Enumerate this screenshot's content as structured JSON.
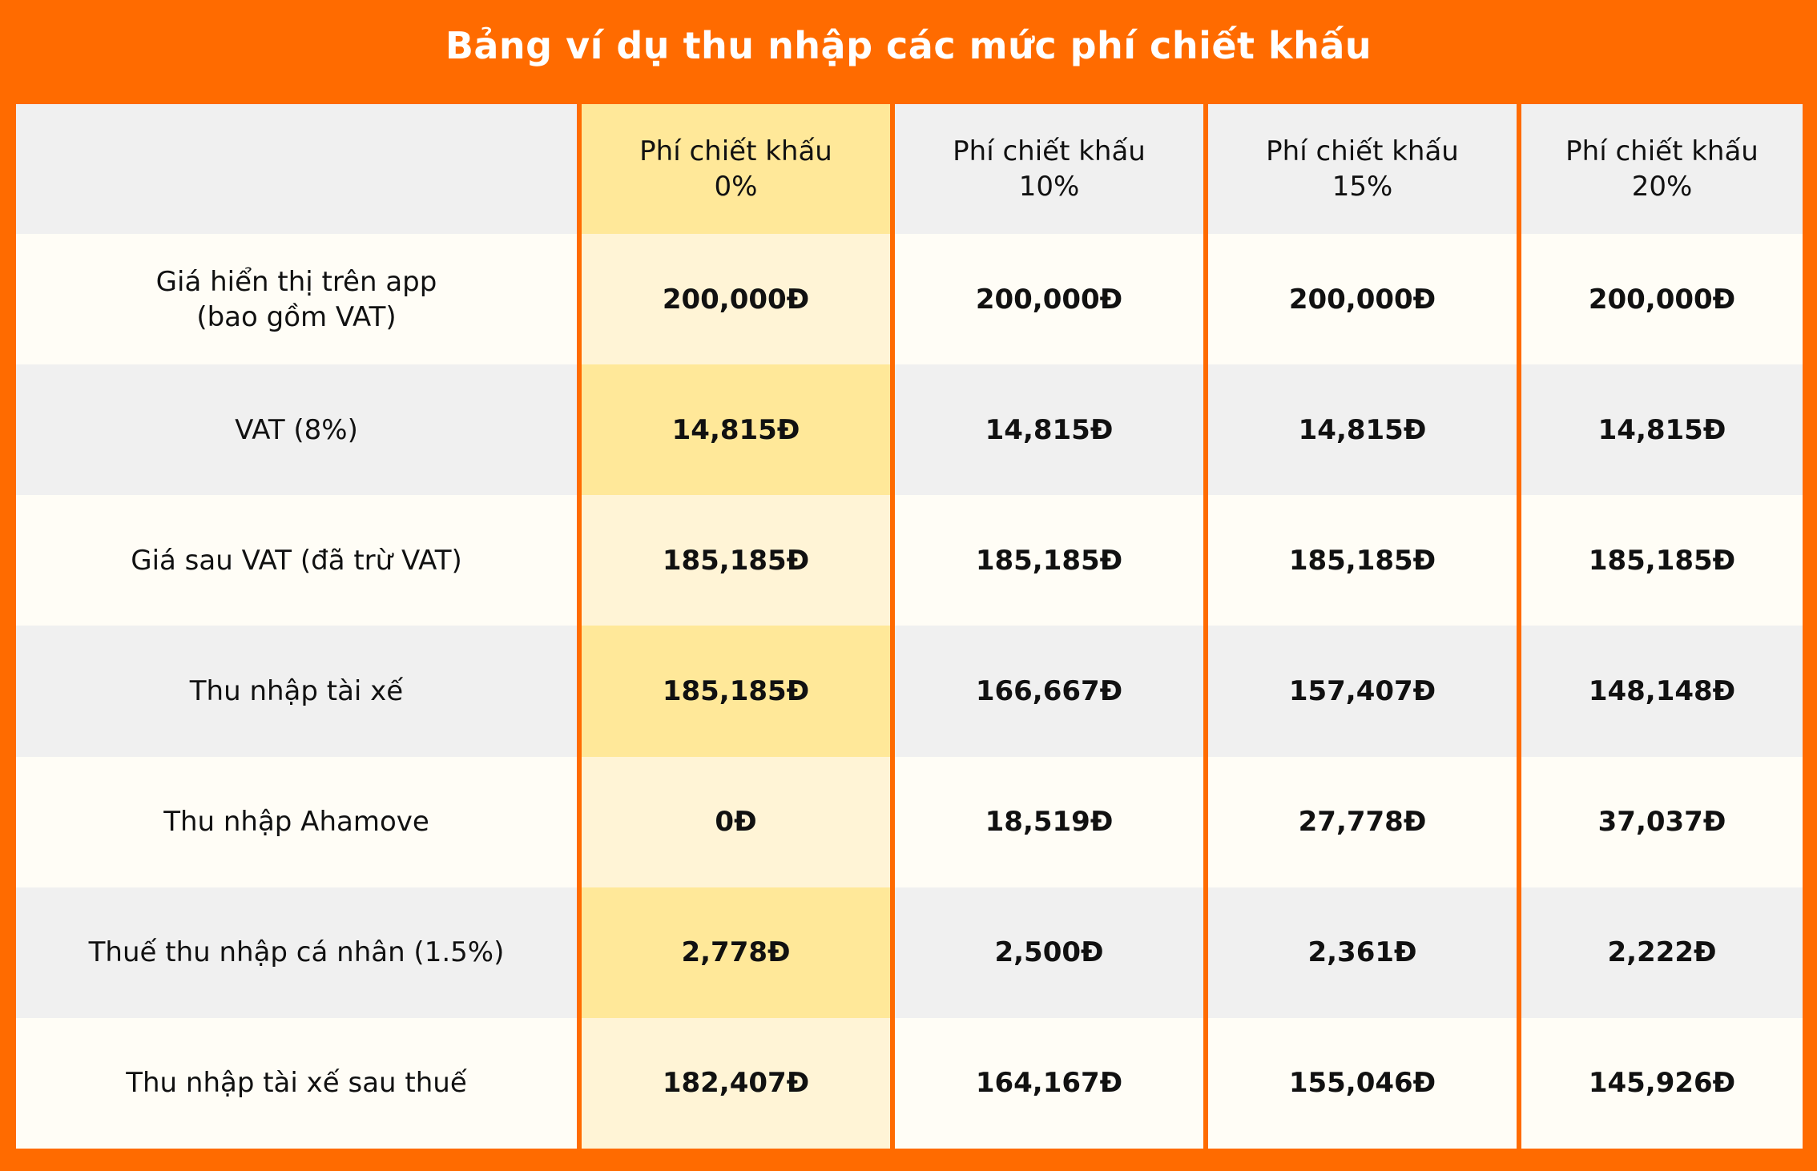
{
  "title": "Bảng ví dụ thu nhập các mức phí chiết khấu",
  "colors": {
    "background": "#FF6B00",
    "highlight_header": "#FFE899",
    "highlight_light": "#FFF4D6",
    "row_light": "#FFFDF6",
    "row_gray": "#F0F0F0"
  },
  "table": {
    "headers": [
      {
        "line1": "",
        "line2": ""
      },
      {
        "line1": "Phí chiết khấu",
        "line2": "0%"
      },
      {
        "line1": "Phí chiết khấu",
        "line2": "10%"
      },
      {
        "line1": "Phí chiết khấu",
        "line2": "15%"
      },
      {
        "line1": "Phí chiết khấu",
        "line2": "20%"
      }
    ],
    "rows": [
      {
        "label1": "Giá hiển thị trên app",
        "label2": "(bao gồm VAT)",
        "values": [
          "200,000Đ",
          "200,000Đ",
          "200,000Đ",
          "200,000Đ"
        ]
      },
      {
        "label1": "VAT (8%)",
        "label2": "",
        "values": [
          "14,815Đ",
          "14,815Đ",
          "14,815Đ",
          "14,815Đ"
        ]
      },
      {
        "label1": "Giá sau VAT (đã trừ VAT)",
        "label2": "",
        "values": [
          "185,185Đ",
          "185,185Đ",
          "185,185Đ",
          "185,185Đ"
        ]
      },
      {
        "label1": "Thu nhập tài xế",
        "label2": "",
        "values": [
          "185,185Đ",
          "166,667Đ",
          "157,407Đ",
          "148,148Đ"
        ]
      },
      {
        "label1": "Thu nhập Ahamove",
        "label2": "",
        "values": [
          "0Đ",
          "18,519Đ",
          "27,778Đ",
          "37,037Đ"
        ]
      },
      {
        "label1": "Thuế thu nhập cá nhân (1.5%)",
        "label2": "",
        "values": [
          "2,778Đ",
          "2,500Đ",
          "2,361Đ",
          "2,222Đ"
        ]
      },
      {
        "label1": "Thu nhập tài xế sau thuế",
        "label2": "",
        "values": [
          "182,407Đ",
          "164,167Đ",
          "155,046Đ",
          "145,926Đ"
        ]
      }
    ]
  }
}
